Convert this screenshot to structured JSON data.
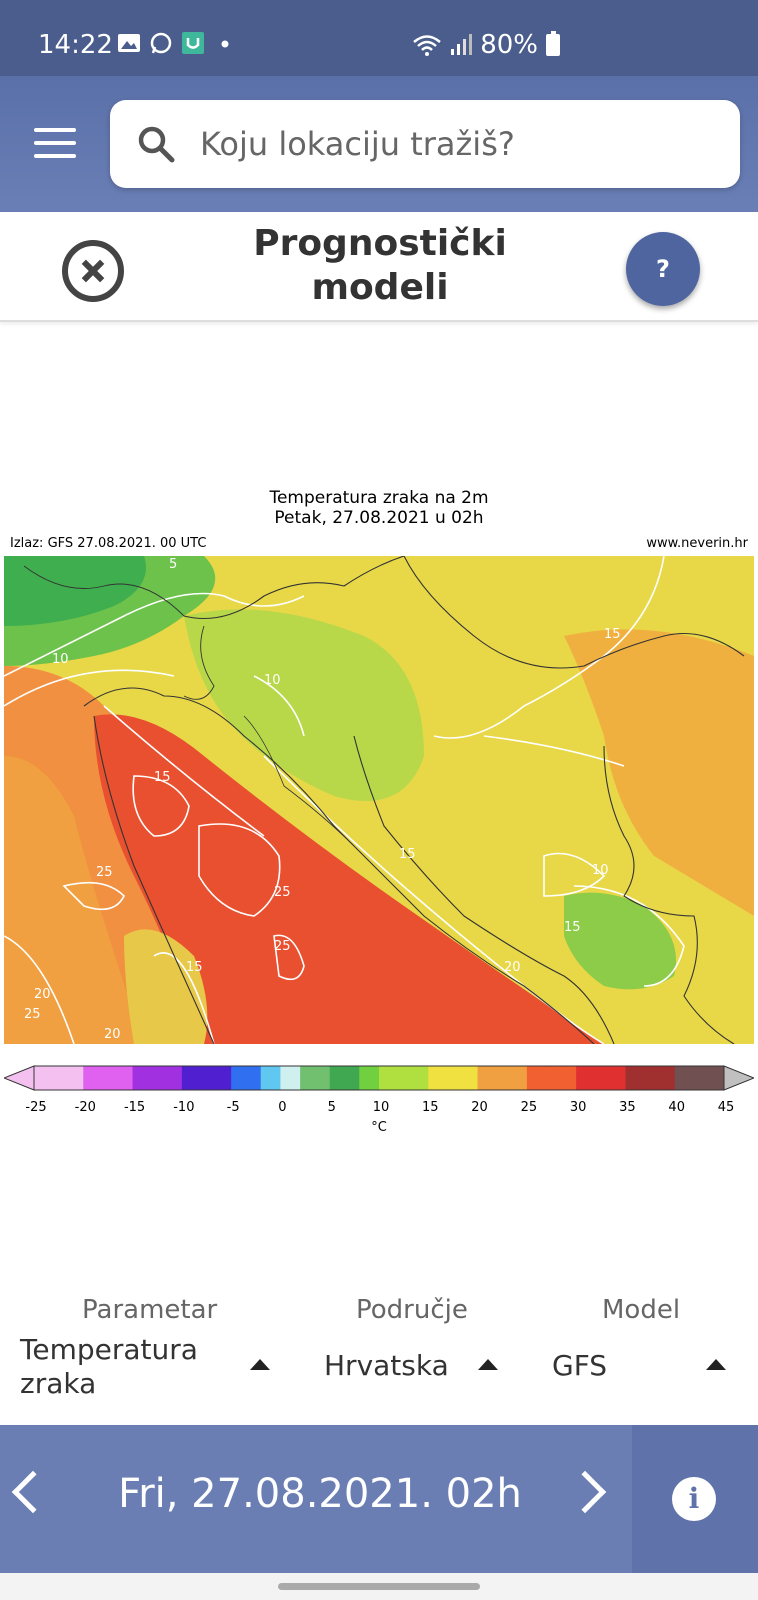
{
  "status": {
    "time": "14:22",
    "battery": "80%",
    "icons": [
      "gallery-icon",
      "whatsapp-icon",
      "app-icon",
      "dot-icon",
      "wifi-icon",
      "signal-icon",
      "battery-icon"
    ]
  },
  "header": {
    "menu_icon": "hamburger-icon",
    "search_placeholder": "Koju lokaciju tražiš?"
  },
  "titlebar": {
    "title_line1": "Prognostički",
    "title_line2": "modeli",
    "help_label": "?"
  },
  "chart": {
    "title_line1": "Temperatura zraka na 2m",
    "title_line2": "Petak, 27.08.2021 u 02h",
    "source": "Izlaz: GFS 27.08.2021. 00 UTC",
    "website": "www.neverin.hr",
    "unit": "°C",
    "contour_labels": [
      "5",
      "10",
      "15",
      "25",
      "25",
      "25",
      "15",
      "15",
      "10",
      "15",
      "10",
      "20",
      "20",
      "25",
      "20",
      "15"
    ]
  },
  "chart_data": {
    "type": "heatmap",
    "title": "Temperatura zraka na 2m",
    "subtitle": "Petak, 27.08.2021 u 02h",
    "colorbar_ticks": [
      -25,
      -20,
      -15,
      -10,
      -5,
      0,
      5,
      10,
      15,
      20,
      25,
      30,
      35,
      40,
      45
    ],
    "colorbar_unit": "°C",
    "range": [
      -25,
      45
    ]
  },
  "selectors": {
    "parametar_label": "Parametar",
    "parametar_value_line1": "Temperatura",
    "parametar_value_line2": "zraka",
    "podrucje_label": "Područje",
    "podrucje_value": "Hrvatska",
    "model_label": "Model",
    "model_value": "GFS"
  },
  "bottom": {
    "date": "Fri, 27.08.2021. 02h",
    "info_label": "i"
  },
  "colors": {
    "header": "#5a70a8",
    "bottom_bar": "#6a7eb4",
    "help_button": "#4f65a0"
  }
}
